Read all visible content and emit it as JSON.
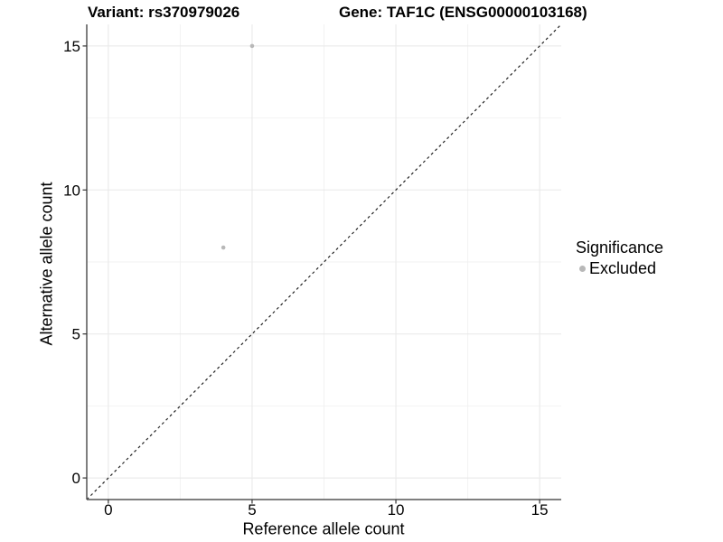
{
  "header": {
    "variant_title": "Variant: rs370979026",
    "gene_title": "Gene: TAF1C (ENSG00000103168)"
  },
  "legend": {
    "title": "Significance",
    "position": "right",
    "items": [
      {
        "label": "Excluded",
        "color": "#b8b8b8"
      }
    ]
  },
  "colors": {
    "background": "#ffffff",
    "grid_major": "#e8e8e8",
    "grid_minor": "#f2f2f2",
    "axis_line": "#555555",
    "tick_mark": "#333333",
    "text": "#000000",
    "reference_line": "#222222",
    "point": "#b8b8b8"
  },
  "chart_data": {
    "type": "scatter",
    "title": "Variant: rs370979026   Gene: TAF1C (ENSG00000103168)",
    "xlabel": "Reference allele count",
    "ylabel": "Alternative allele count",
    "xlim": [
      -0.75,
      15.75
    ],
    "ylim": [
      -0.75,
      15.75
    ],
    "x_ticks": [
      0,
      5,
      10,
      15
    ],
    "x_tick_labels": [
      "0",
      "5",
      "10",
      "15"
    ],
    "y_ticks": [
      0,
      5,
      10,
      15
    ],
    "y_tick_labels": [
      "0",
      "5",
      "10",
      "15"
    ],
    "x_minor_ticks": [
      2.5,
      7.5,
      12.5
    ],
    "y_minor_ticks": [
      2.5,
      7.5,
      12.5
    ],
    "grid": true,
    "legend_position": "right",
    "reference_line": {
      "type": "identity y=x",
      "style": "dashed"
    },
    "series": [
      {
        "name": "Excluded",
        "points": [
          {
            "x": 5,
            "y": 15
          },
          {
            "x": 4,
            "y": 8
          }
        ]
      }
    ]
  }
}
